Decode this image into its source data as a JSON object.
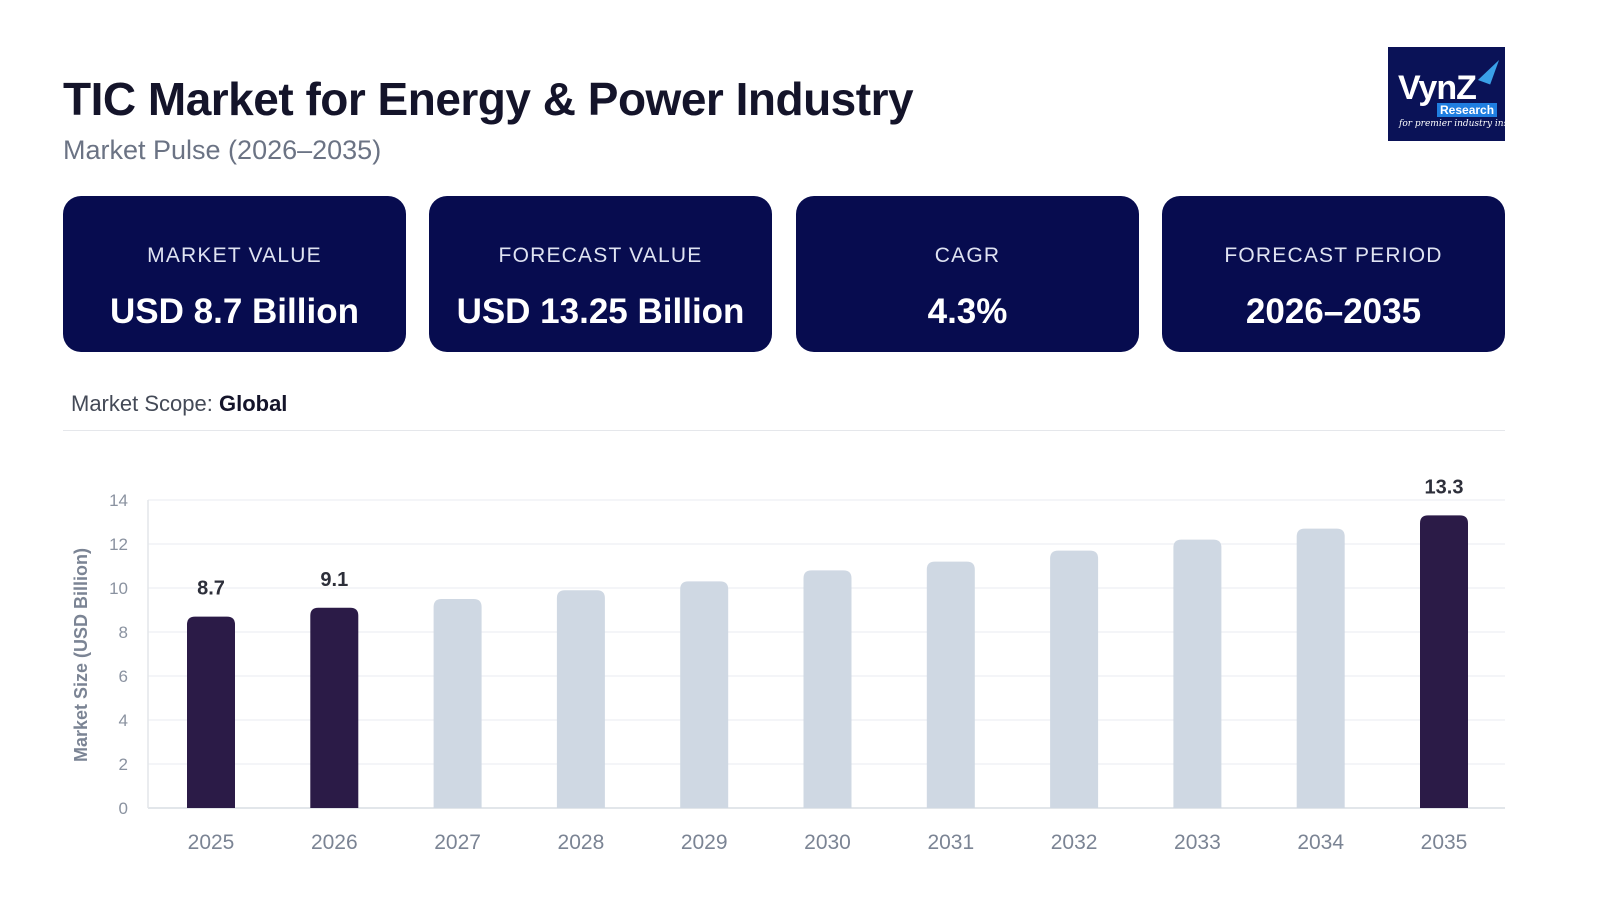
{
  "header": {
    "title": "TIC Market for Energy & Power Industry",
    "subtitle": "Market Pulse (2026–2035)"
  },
  "logo": {
    "text": "VynZ",
    "badge": "Research",
    "tagline": "for premier industry insights"
  },
  "cards": [
    {
      "label": "MARKET VALUE",
      "value": "USD 8.7 Billion"
    },
    {
      "label": "FORECAST VALUE",
      "value": "USD 13.25 Billion"
    },
    {
      "label": "CAGR",
      "value": "4.3%"
    },
    {
      "label": "FORECAST PERIOD",
      "value": "2026–2035"
    }
  ],
  "scope": {
    "label": "Market Scope:",
    "value": "Global"
  },
  "colors": {
    "card_bg": "#070c4f",
    "highlight_bar": "#2b1b47",
    "forecast_bar": "#cfd8e3"
  },
  "chart_data": {
    "type": "bar",
    "ylabel": "Market Size (USD Billion)",
    "xlabel": "",
    "ylim": [
      0,
      14
    ],
    "yticks": [
      0,
      2,
      4,
      6,
      8,
      10,
      12,
      14
    ],
    "grid": true,
    "categories": [
      "2025",
      "2026",
      "2027",
      "2028",
      "2029",
      "2030",
      "2031",
      "2032",
      "2033",
      "2034",
      "2035"
    ],
    "values": [
      8.7,
      9.1,
      9.5,
      9.9,
      10.3,
      10.8,
      11.2,
      11.7,
      12.2,
      12.7,
      13.3
    ],
    "highlighted": [
      "2025",
      "2026",
      "2035"
    ],
    "data_labels": {
      "2025": "8.7",
      "2026": "9.1",
      "2035": "13.3"
    }
  }
}
